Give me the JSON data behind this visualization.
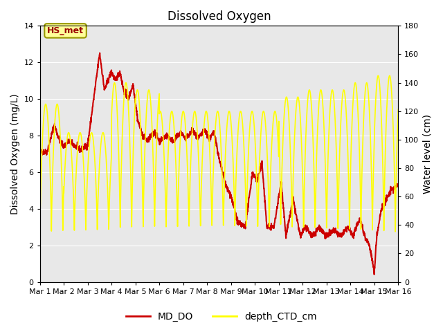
{
  "title": "Dissolved Oxygen",
  "ylabel_left": "Dissolved Oxygen (mg/L)",
  "ylabel_right": "Water level (cm)",
  "xlim": [
    0,
    15
  ],
  "ylim_left": [
    0,
    14
  ],
  "ylim_right": [
    0,
    180
  ],
  "xtick_labels": [
    "Mar 1",
    "Mar 2",
    "Mar 3",
    "Mar 4",
    "Mar 5",
    "Mar 6",
    "Mar 7",
    "Mar 8",
    "Mar 9",
    "Mar 10",
    "Mar 11",
    "Mar 12",
    "Mar 13",
    "Mar 14",
    "Mar 15",
    "Mar 16"
  ],
  "yticks_left": [
    0,
    2,
    4,
    6,
    8,
    10,
    12,
    14
  ],
  "yticks_right": [
    0,
    20,
    40,
    60,
    80,
    100,
    120,
    140,
    160,
    180
  ],
  "color_do": "#cc0000",
  "color_depth": "#ffff00",
  "legend_label_do": "MD_DO",
  "legend_label_depth": "depth_CTD_cm",
  "annotation_text": "HS_met",
  "bg_color": "#e8e8e8",
  "grid_color": "#ffffff",
  "title_fontsize": 12,
  "axis_label_fontsize": 10,
  "tick_fontsize": 8,
  "legend_fontsize": 10
}
